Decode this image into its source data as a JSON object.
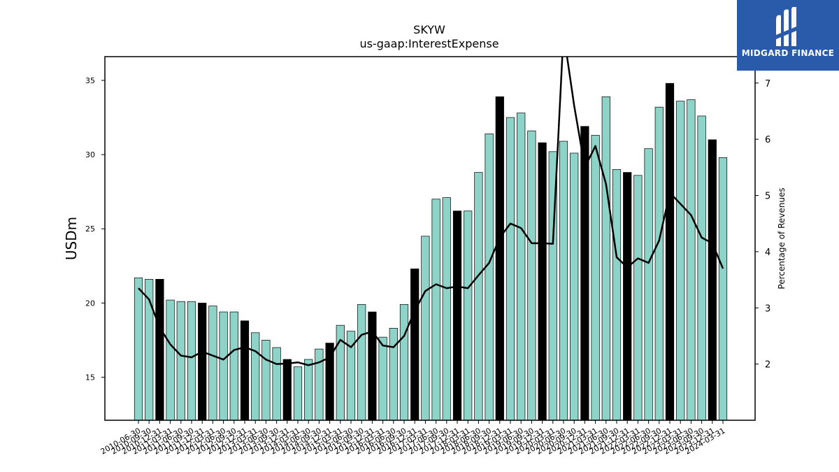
{
  "brand": {
    "name": "MIDGARD FINANCE",
    "color": "#2a5bab"
  },
  "chart_data": {
    "type": "bar",
    "title": "SKYW",
    "subtitle": "us-gaap:InterestExpense",
    "ylabel": "USDm",
    "y2label": "Percentage of Revenues",
    "ylim": [
      12.1,
      36.6
    ],
    "y2lim": [
      1.0,
      7.47
    ],
    "yticks": [
      15,
      20,
      25,
      30,
      35
    ],
    "y2ticks": [
      2,
      3,
      4,
      5,
      6,
      7
    ],
    "bar_color": "#8dd3c7",
    "highlight_color": "#000000",
    "line_color": "#000000",
    "categories": [
      "2010-06-30",
      "2010-09-30",
      "2010-12-31",
      "2011-03-31",
      "2011-06-30",
      "2011-09-30",
      "2011-12-31",
      "2012-03-31",
      "2012-06-30",
      "2012-09-30",
      "2012-12-31",
      "2013-03-31",
      "2013-06-30",
      "2013-09-30",
      "2013-12-31",
      "2014-03-31",
      "2014-06-30",
      "2014-09-30",
      "2014-12-31",
      "2015-03-31",
      "2015-06-30",
      "2015-09-30",
      "2015-12-31",
      "2016-03-31",
      "2016-06-30",
      "2016-09-30",
      "2016-12-31",
      "2017-03-31",
      "2017-06-30",
      "2017-09-30",
      "2017-12-31",
      "2018-03-31",
      "2018-06-30",
      "2018-09-30",
      "2018-12-31",
      "2019-03-31",
      "2019-06-30",
      "2019-09-30",
      "2019-12-31",
      "2020-03-31",
      "2020-06-30",
      "2020-09-30",
      "2020-12-31",
      "2021-03-31",
      "2021-06-30",
      "2021-09-30",
      "2021-12-31",
      "2022-03-31",
      "2022-06-30",
      "2022-09-30",
      "2022-12-31",
      "2023-03-31",
      "2023-06-30",
      "2023-09-30",
      "2023-12-31",
      "2024-03-31"
    ],
    "tick_labels": [
      "2010-06-30",
      "2010-09-30",
      "2010-12-31",
      "2011-03-31",
      "2011-06-30",
      "2011-09-30",
      "2011-12-31",
      "2012-03-31",
      "2012-06-30",
      "2012-09-30",
      "2012-12-31",
      "2013-03-31",
      "2013-06-30",
      "2013-09-30",
      "2013-12-31",
      "2014-03-31",
      "2014-06-30",
      "2014-09-30",
      "2014-12-31",
      "2015-03-31",
      "2015-06-30",
      "2015-09-30",
      "2015-12-31",
      "2016-03-31",
      "2016-06-30",
      "2016-09-30",
      "2016-12-31",
      "2017-03-31",
      "2017-06-30",
      "2017-09-30",
      "2017-12-31",
      "2018-03-31",
      "2018-06-30",
      "2018-09-30",
      "2018-12-31",
      "2019-03-31",
      "2019-06-30",
      "2019-09-30",
      "2019-12-31",
      "2020-03-31",
      "2020-06-30",
      "2020-09-30",
      "2020-12-31",
      "2021-03-31",
      "2021-06-30",
      "2021-09-30",
      "2021-12-31",
      "2022-03-31",
      "2022-06-30",
      "2022-09-30",
      "2022-12-31",
      "2023-03-31",
      "2023-06-30",
      "2023-09-30",
      "2023-12-31",
      "2024-03-31"
    ],
    "highlight": [
      false,
      false,
      true,
      false,
      false,
      false,
      true,
      false,
      false,
      false,
      true,
      false,
      false,
      false,
      true,
      false,
      false,
      false,
      true,
      false,
      false,
      false,
      true,
      false,
      false,
      false,
      true,
      false,
      false,
      false,
      true,
      false,
      false,
      false,
      true,
      false,
      false,
      false,
      true,
      false,
      false,
      false,
      true,
      false,
      false,
      false,
      true,
      false,
      false,
      false,
      true,
      false,
      false,
      false,
      true,
      false
    ],
    "series": [
      {
        "type": "bar",
        "axis": "left",
        "values": [
          21.7,
          21.6,
          21.6,
          20.2,
          20.1,
          20.1,
          20.0,
          19.8,
          19.4,
          19.4,
          18.8,
          18.0,
          17.5,
          17.0,
          16.2,
          15.7,
          16.2,
          16.9,
          17.3,
          18.5,
          18.1,
          19.9,
          19.4,
          17.7,
          18.3,
          19.9,
          22.3,
          24.5,
          27.0,
          27.1,
          26.2,
          26.2,
          28.8,
          31.4,
          33.9,
          32.5,
          32.8,
          31.6,
          30.8,
          30.2,
          30.9,
          30.1,
          31.9,
          31.3,
          33.9,
          29.0,
          28.8,
          28.6,
          30.4,
          33.2,
          34.8,
          33.6,
          33.7,
          32.6,
          31.0,
          29.8
        ]
      },
      {
        "type": "line",
        "axis": "right",
        "values": [
          3.35,
          3.15,
          2.65,
          2.35,
          2.15,
          2.12,
          2.22,
          2.15,
          2.08,
          2.25,
          2.3,
          2.23,
          2.08,
          2.0,
          2.01,
          2.03,
          1.98,
          2.03,
          2.12,
          2.43,
          2.3,
          2.52,
          2.58,
          2.33,
          2.3,
          2.5,
          2.95,
          3.3,
          3.42,
          3.35,
          3.38,
          3.35,
          3.58,
          3.8,
          4.25,
          4.5,
          4.42,
          4.15,
          4.15,
          4.14,
          7.9,
          6.6,
          5.5,
          5.88,
          5.2,
          3.9,
          3.72,
          3.88,
          3.8,
          4.2,
          5.05,
          4.85,
          4.65,
          4.25,
          4.15,
          3.7
        ]
      }
    ],
    "grid": false,
    "legend": "none"
  }
}
